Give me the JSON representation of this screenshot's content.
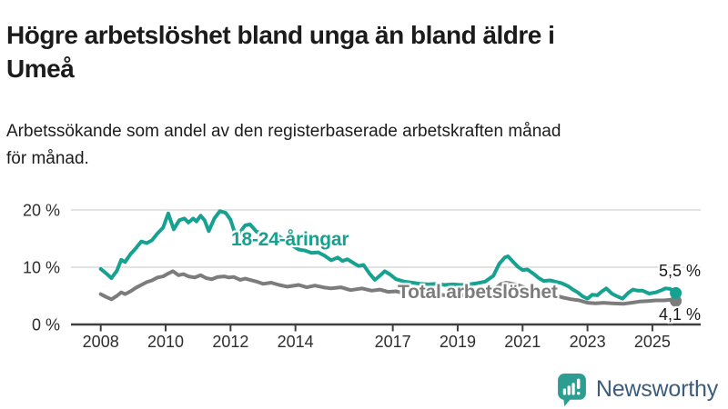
{
  "header": {
    "title": "Högre arbetslöshet bland unga än bland äldre i\nUmeå",
    "subtitle": "Arbetssökande som andel av den registerbaserade arbetskraften månad\nför månad."
  },
  "chart_data": {
    "type": "line",
    "title": "Högre arbetslöshet bland unga än bland äldre i Umeå",
    "xlabel": "",
    "ylabel": "Arbetssökande som andel av den registerbaserade arbetskraften",
    "x_unit": "year, monthly observations",
    "ylim": [
      0,
      20
    ],
    "xlim": [
      2007.1,
      2026.5
    ],
    "grid": "horizontal",
    "legend_position": "inline-labels-on-lines",
    "y_ticks": [
      {
        "value": 0,
        "label": "0 %"
      },
      {
        "value": 10,
        "label": "10 %"
      },
      {
        "value": 20,
        "label": "20 %"
      }
    ],
    "x_ticks": [
      {
        "value": 2008,
        "label": "2008"
      },
      {
        "value": 2010,
        "label": "2010"
      },
      {
        "value": 2012,
        "label": "2012"
      },
      {
        "value": 2014,
        "label": "2014"
      },
      {
        "value": 2017,
        "label": "2017"
      },
      {
        "value": 2019,
        "label": "2019"
      },
      {
        "value": 2021,
        "label": "2021"
      },
      {
        "value": 2023,
        "label": "2023"
      },
      {
        "value": 2025,
        "label": "2025"
      }
    ],
    "series": [
      {
        "name": "18-24-åringar",
        "color": "#16a191",
        "end_value": 5.5,
        "end_label": "5,5 %",
        "points": [
          [
            2008.0,
            9.7
          ],
          [
            2008.17,
            8.9
          ],
          [
            2008.33,
            8.1
          ],
          [
            2008.5,
            9.4
          ],
          [
            2008.63,
            11.3
          ],
          [
            2008.75,
            10.9
          ],
          [
            2008.92,
            12.3
          ],
          [
            2009.08,
            13.3
          ],
          [
            2009.25,
            14.5
          ],
          [
            2009.42,
            14.2
          ],
          [
            2009.58,
            14.7
          ],
          [
            2009.75,
            15.9
          ],
          [
            2009.92,
            16.9
          ],
          [
            2010.08,
            19.4
          ],
          [
            2010.25,
            16.6
          ],
          [
            2010.42,
            18.2
          ],
          [
            2010.58,
            18.5
          ],
          [
            2010.7,
            17.8
          ],
          [
            2010.85,
            18.5
          ],
          [
            2010.95,
            18.0
          ],
          [
            2011.08,
            19.0
          ],
          [
            2011.2,
            18.2
          ],
          [
            2011.33,
            16.3
          ],
          [
            2011.5,
            18.5
          ],
          [
            2011.67,
            19.8
          ],
          [
            2011.85,
            19.5
          ],
          [
            2012.0,
            18.3
          ],
          [
            2012.12,
            16.2
          ],
          [
            2012.25,
            15.8
          ],
          [
            2012.45,
            17.3
          ],
          [
            2012.6,
            17.5
          ],
          [
            2012.8,
            16.2
          ],
          [
            2013.0,
            15.9
          ],
          [
            2013.2,
            15.2
          ],
          [
            2013.45,
            15.6
          ],
          [
            2013.7,
            14.5
          ],
          [
            2013.9,
            13.8
          ],
          [
            2014.1,
            13.1
          ],
          [
            2014.3,
            12.9
          ],
          [
            2014.5,
            12.5
          ],
          [
            2014.7,
            12.6
          ],
          [
            2014.9,
            12.0
          ],
          [
            2015.1,
            11.2
          ],
          [
            2015.3,
            11.7
          ],
          [
            2015.45,
            11.1
          ],
          [
            2015.6,
            11.4
          ],
          [
            2015.8,
            10.7
          ],
          [
            2015.95,
            10.2
          ],
          [
            2016.1,
            10.4
          ],
          [
            2016.28,
            8.9
          ],
          [
            2016.45,
            7.8
          ],
          [
            2016.6,
            8.5
          ],
          [
            2016.75,
            9.3
          ],
          [
            2016.9,
            8.8
          ],
          [
            2017.1,
            7.9
          ],
          [
            2017.35,
            7.5
          ],
          [
            2017.6,
            7.3
          ],
          [
            2017.85,
            7.1
          ],
          [
            2018.1,
            7.0
          ],
          [
            2018.35,
            7.1
          ],
          [
            2018.6,
            6.9
          ],
          [
            2018.85,
            7.0
          ],
          [
            2019.1,
            6.9
          ],
          [
            2019.35,
            7.0
          ],
          [
            2019.6,
            7.2
          ],
          [
            2019.85,
            7.5
          ],
          [
            2020.1,
            8.5
          ],
          [
            2020.28,
            10.6
          ],
          [
            2020.45,
            11.7
          ],
          [
            2020.55,
            11.9
          ],
          [
            2020.7,
            11.0
          ],
          [
            2020.85,
            10.1
          ],
          [
            2021.0,
            9.5
          ],
          [
            2021.15,
            9.6
          ],
          [
            2021.35,
            8.8
          ],
          [
            2021.5,
            8.1
          ],
          [
            2021.65,
            7.6
          ],
          [
            2021.85,
            7.7
          ],
          [
            2022.0,
            7.5
          ],
          [
            2022.2,
            7.2
          ],
          [
            2022.4,
            6.7
          ],
          [
            2022.55,
            6.1
          ],
          [
            2022.7,
            5.6
          ],
          [
            2022.85,
            4.9
          ],
          [
            2023.0,
            4.5
          ],
          [
            2023.15,
            5.2
          ],
          [
            2023.3,
            5.1
          ],
          [
            2023.45,
            5.8
          ],
          [
            2023.58,
            6.3
          ],
          [
            2023.75,
            5.4
          ],
          [
            2023.92,
            4.9
          ],
          [
            2024.08,
            4.5
          ],
          [
            2024.25,
            5.5
          ],
          [
            2024.4,
            6.1
          ],
          [
            2024.55,
            5.9
          ],
          [
            2024.7,
            5.9
          ],
          [
            2024.9,
            5.4
          ],
          [
            2025.1,
            5.6
          ],
          [
            2025.25,
            5.9
          ],
          [
            2025.4,
            6.3
          ],
          [
            2025.55,
            6.2
          ],
          [
            2025.72,
            5.5
          ]
        ]
      },
      {
        "name": "Total arbetslöshet",
        "color": "#7c7c7c",
        "end_value": 4.1,
        "end_label": "4,1 %",
        "points": [
          [
            2008.0,
            5.3
          ],
          [
            2008.17,
            4.8
          ],
          [
            2008.33,
            4.4
          ],
          [
            2008.5,
            5.0
          ],
          [
            2008.63,
            5.6
          ],
          [
            2008.75,
            5.3
          ],
          [
            2008.92,
            5.8
          ],
          [
            2009.08,
            6.4
          ],
          [
            2009.25,
            6.9
          ],
          [
            2009.42,
            7.4
          ],
          [
            2009.58,
            7.7
          ],
          [
            2009.75,
            8.2
          ],
          [
            2009.92,
            8.4
          ],
          [
            2010.08,
            8.9
          ],
          [
            2010.22,
            9.3
          ],
          [
            2010.4,
            8.6
          ],
          [
            2010.55,
            8.8
          ],
          [
            2010.7,
            8.4
          ],
          [
            2010.9,
            8.2
          ],
          [
            2011.08,
            8.6
          ],
          [
            2011.25,
            8.1
          ],
          [
            2011.42,
            7.9
          ],
          [
            2011.6,
            8.3
          ],
          [
            2011.8,
            8.4
          ],
          [
            2011.95,
            8.2
          ],
          [
            2012.1,
            8.3
          ],
          [
            2012.3,
            7.8
          ],
          [
            2012.45,
            8.0
          ],
          [
            2012.6,
            7.8
          ],
          [
            2012.8,
            7.5
          ],
          [
            2013.0,
            7.1
          ],
          [
            2013.25,
            7.3
          ],
          [
            2013.5,
            6.9
          ],
          [
            2013.75,
            6.6
          ],
          [
            2014.1,
            6.9
          ],
          [
            2014.35,
            6.5
          ],
          [
            2014.6,
            6.8
          ],
          [
            2014.85,
            6.5
          ],
          [
            2015.1,
            6.3
          ],
          [
            2015.4,
            6.5
          ],
          [
            2015.7,
            6.0
          ],
          [
            2016.05,
            6.3
          ],
          [
            2016.35,
            5.9
          ],
          [
            2016.6,
            6.1
          ],
          [
            2016.85,
            5.7
          ],
          [
            2017.1,
            5.8
          ],
          [
            2017.35,
            5.5
          ],
          [
            2017.6,
            5.6
          ],
          [
            2017.85,
            5.4
          ],
          [
            2018.1,
            5.2
          ],
          [
            2018.35,
            5.3
          ],
          [
            2018.6,
            5.1
          ],
          [
            2018.85,
            5.2
          ],
          [
            2019.1,
            5.1
          ],
          [
            2019.35,
            5.2
          ],
          [
            2019.6,
            5.3
          ],
          [
            2019.85,
            5.5
          ],
          [
            2020.1,
            6.1
          ],
          [
            2020.35,
            7.1
          ],
          [
            2020.5,
            7.3
          ],
          [
            2020.7,
            7.1
          ],
          [
            2020.9,
            6.8
          ],
          [
            2021.1,
            6.4
          ],
          [
            2021.3,
            6.2
          ],
          [
            2021.5,
            5.8
          ],
          [
            2021.75,
            5.4
          ],
          [
            2022.0,
            5.1
          ],
          [
            2022.25,
            4.7
          ],
          [
            2022.5,
            4.4
          ],
          [
            2022.75,
            4.2
          ],
          [
            2023.0,
            3.8
          ],
          [
            2023.25,
            3.7
          ],
          [
            2023.5,
            3.8
          ],
          [
            2023.75,
            3.7
          ],
          [
            2024.1,
            3.6
          ],
          [
            2024.35,
            3.8
          ],
          [
            2024.6,
            4.0
          ],
          [
            2024.85,
            4.1
          ],
          [
            2025.1,
            4.2
          ],
          [
            2025.35,
            4.2
          ],
          [
            2025.55,
            4.3
          ],
          [
            2025.72,
            4.1
          ]
        ]
      }
    ],
    "colors": {
      "grid": "#dadada",
      "axis": "#3f3f3f",
      "tick_label": "#2e2e2e"
    }
  },
  "footer": {
    "brand": "Newsworthy",
    "logo_icon": "bar-chart-speech-bubble-icon",
    "brand_text_color": "#3d5c7b",
    "brand_icon_color": "#2d9d92"
  }
}
